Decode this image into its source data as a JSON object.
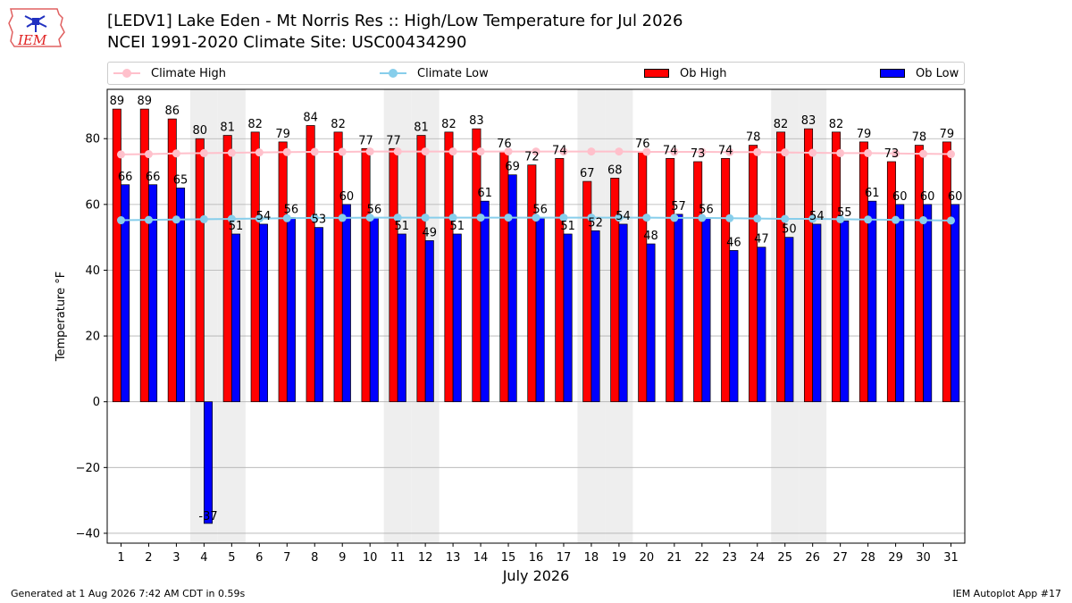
{
  "header": {
    "title_line1": "[LEDV1] Lake Eden - Mt Norris Res :: High/Low Temperature for Jul 2026",
    "title_line2": "NCEI 1991-2020 Climate Site: USC00434290"
  },
  "logo": {
    "text": "IEM"
  },
  "footer": {
    "generated": "Generated at 1 Aug 2026 7:42 AM CDT in 0.59s",
    "app": "IEM Autoplot App #17"
  },
  "colors": {
    "ob_high": "#ff0000",
    "ob_low": "#0000ff",
    "climate_high": "#ffc0cb",
    "climate_low": "#87ceeb",
    "weekend_shade": "#eeeeee",
    "grid": "#b0b0b0"
  },
  "legend": [
    {
      "label": "Climate High",
      "kind": "line",
      "color_key": "climate_high"
    },
    {
      "label": "Climate Low",
      "kind": "line",
      "color_key": "climate_low"
    },
    {
      "label": "Ob High",
      "kind": "rect",
      "color_key": "ob_high"
    },
    {
      "label": "Ob Low",
      "kind": "rect",
      "color_key": "ob_low"
    }
  ],
  "chart_data": {
    "type": "bar",
    "xlabel": "July 2026",
    "ylabel": "Temperature °F",
    "ylim": [
      -43,
      95
    ],
    "yticks": [
      -40,
      -20,
      0,
      20,
      40,
      60,
      80
    ],
    "grid": true,
    "legend_position": "top",
    "categories": [
      "1",
      "2",
      "3",
      "4",
      "5",
      "6",
      "7",
      "8",
      "9",
      "10",
      "11",
      "12",
      "13",
      "14",
      "15",
      "16",
      "17",
      "18",
      "19",
      "20",
      "21",
      "22",
      "23",
      "24",
      "25",
      "26",
      "27",
      "28",
      "29",
      "30",
      "31"
    ],
    "shaded_days": [
      4,
      5,
      11,
      12,
      18,
      19,
      25,
      26
    ],
    "series": [
      {
        "name": "Ob High",
        "kind": "bar",
        "values": [
          89,
          89,
          86,
          80,
          81,
          82,
          79,
          84,
          82,
          77,
          77,
          81,
          82,
          83,
          76,
          72,
          74,
          67,
          68,
          76,
          74,
          73,
          74,
          78,
          82,
          83,
          82,
          79,
          73,
          78,
          79
        ]
      },
      {
        "name": "Ob Low",
        "kind": "bar",
        "values": [
          66,
          66,
          65,
          -37,
          51,
          54,
          56,
          53,
          60,
          56,
          51,
          49,
          51,
          61,
          69,
          56,
          51,
          52,
          54,
          48,
          57,
          56,
          46,
          47,
          50,
          54,
          55,
          61,
          60,
          60,
          60
        ]
      },
      {
        "name": "Climate High",
        "kind": "line",
        "values": [
          75.2,
          75.3,
          75.5,
          75.6,
          75.7,
          75.8,
          75.9,
          76.0,
          76.0,
          76.1,
          76.1,
          76.1,
          76.1,
          76.1,
          76.1,
          76.1,
          76.1,
          76.1,
          76.1,
          76.0,
          76.0,
          76.0,
          75.9,
          75.9,
          75.8,
          75.7,
          75.6,
          75.6,
          75.5,
          75.4,
          75.3
        ]
      },
      {
        "name": "Climate Low",
        "kind": "line",
        "values": [
          55.2,
          55.3,
          55.4,
          55.5,
          55.6,
          55.7,
          55.8,
          55.9,
          55.9,
          56.0,
          56.0,
          56.0,
          56.0,
          56.0,
          56.0,
          56.0,
          56.0,
          56.0,
          56.0,
          56.0,
          55.9,
          55.9,
          55.8,
          55.7,
          55.6,
          55.6,
          55.5,
          55.4,
          55.3,
          55.2,
          55.1
        ]
      }
    ]
  }
}
